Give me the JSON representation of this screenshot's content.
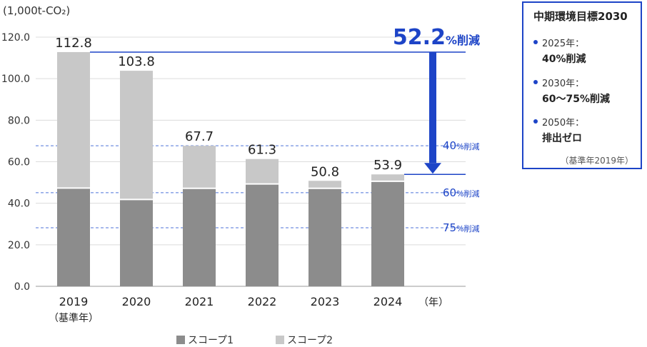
{
  "unit_label": "(1,000t-CO₂)",
  "chart_data": {
    "type": "bar",
    "stacked": true,
    "categories": [
      "2019",
      "2020",
      "2021",
      "2022",
      "2023",
      "2024"
    ],
    "category_sublabels": [
      "（基準年）",
      "",
      "",
      "",
      "",
      ""
    ],
    "x_unit_label": "（年）",
    "ylabel": "(1,000t-CO₂)",
    "ylim": [
      0,
      120
    ],
    "yticks": [
      "0.0",
      "20.0",
      "40.0",
      "60.0",
      "80.0",
      "100.0",
      "120.0"
    ],
    "totals": [
      "112.8",
      "103.8",
      "67.7",
      "61.3",
      "50.8",
      "53.9"
    ],
    "series": [
      {
        "name": "スコープ1",
        "values": [
          47.3,
          41.8,
          47.2,
          49.3,
          47.2,
          50.6
        ],
        "color": "#8c8c8c"
      },
      {
        "name": "スコープ2",
        "values": [
          65.5,
          62.0,
          20.5,
          12.0,
          3.6,
          3.3
        ],
        "color": "#c8c8c8"
      }
    ],
    "reference_lines": [
      {
        "label_num": "40",
        "label_unit": "%削減",
        "value": 67.7
      },
      {
        "label_num": "60",
        "label_unit": "%削減",
        "value": 45.1
      },
      {
        "label_num": "75",
        "label_unit": "%削減",
        "value": 28.2
      }
    ],
    "reduction": {
      "num": "52.2",
      "unit": "%削減",
      "from": 112.8,
      "to": 53.9
    },
    "accent_color": "#1d44c7",
    "grid": "horizontal"
  },
  "goals": {
    "title": "中期環境目標2030",
    "items": [
      {
        "year": "2025年：",
        "target": "40%削減"
      },
      {
        "year": "2030年：",
        "target": "60～75%削減"
      },
      {
        "year": "2050年：",
        "target": "排出ゼロ"
      }
    ],
    "note": "（基準年2019年）"
  },
  "legend": [
    {
      "label": "スコープ1",
      "color": "#8c8c8c"
    },
    {
      "label": "スコープ2",
      "color": "#c8c8c8"
    }
  ]
}
